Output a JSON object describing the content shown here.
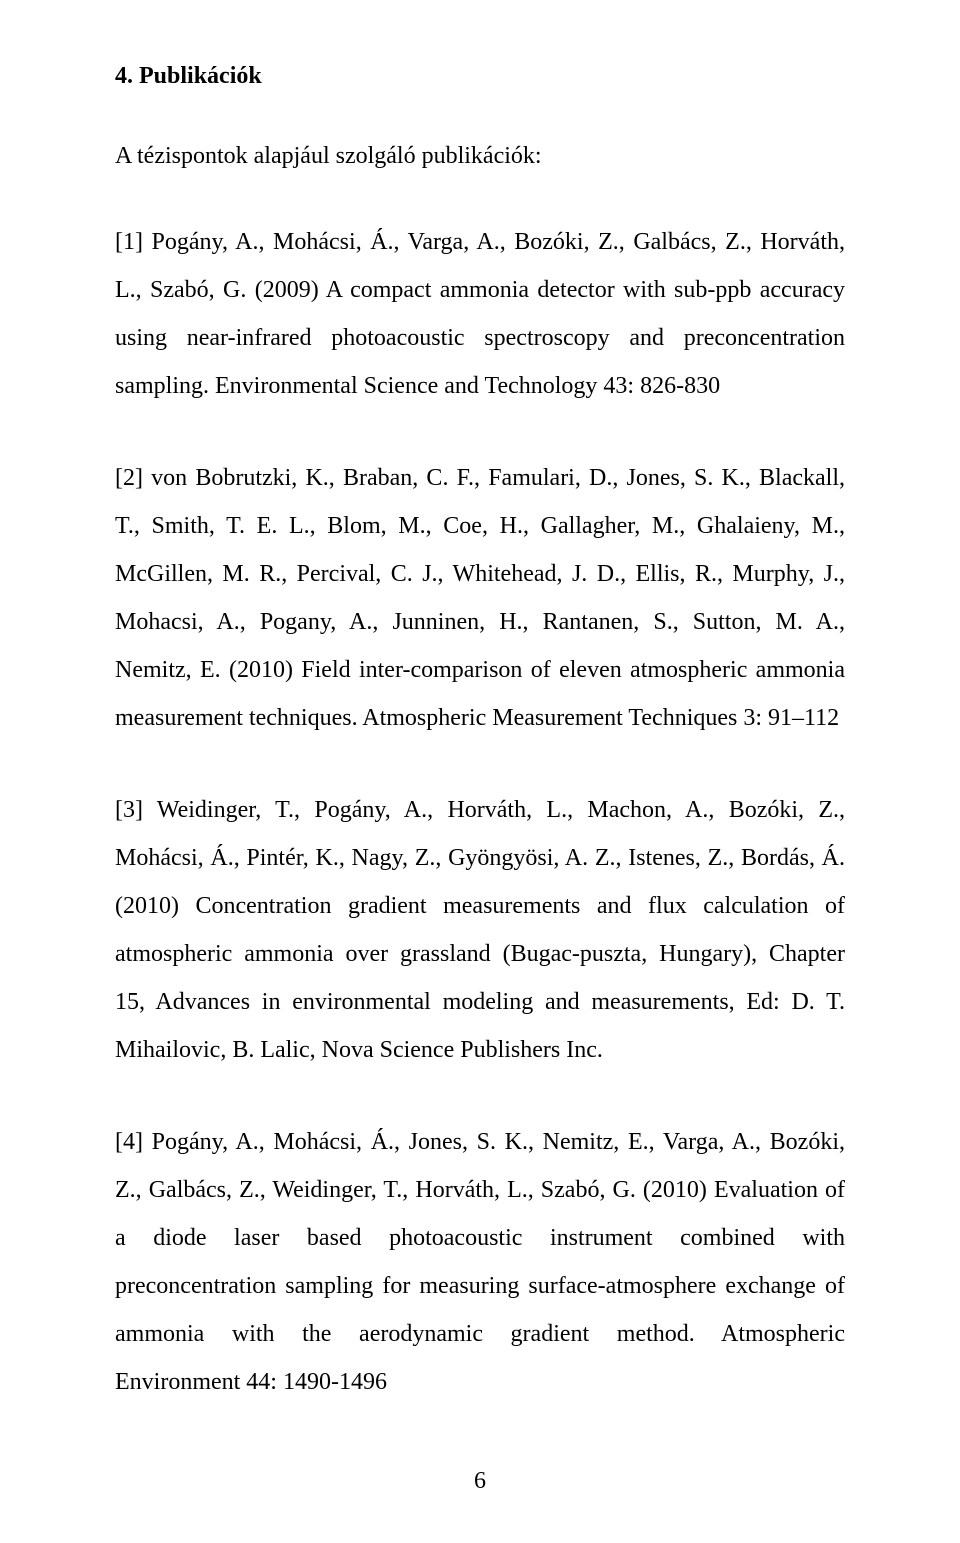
{
  "section_title": "4. Publikációk",
  "subtitle": "A tézispontok alapjául szolgáló publikációk:",
  "references": [
    "[1] Pogány, A., Mohácsi, Á., Varga, A., Bozóki, Z., Galbács, Z., Horváth, L., Szabó, G. (2009) A compact ammonia detector with sub-ppb accuracy using near-infrared photoacoustic spectroscopy and preconcentration sampling. Environmental Science and Technology 43: 826-830",
    "[2] von Bobrutzki, K., Braban, C. F., Famulari, D., Jones, S. K., Blackall, T., Smith, T. E. L., Blom, M., Coe, H., Gallagher, M., Ghalaieny, M., McGillen, M. R., Percival, C. J., Whitehead, J. D., Ellis, R., Murphy, J., Mohacsi, A., Pogany, A., Junninen, H., Rantanen, S., Sutton, M. A., Nemitz, E. (2010) Field inter-comparison of eleven atmospheric ammonia measurement techniques. Atmospheric Measurement Techniques 3: 91–112",
    "[3] Weidinger, T., Pogány, A., Horváth, L., Machon, A., Bozóki, Z., Mohácsi, Á., Pintér, K., Nagy, Z., Gyöngyösi, A. Z., Istenes, Z., Bordás, Á. (2010) Concentration gradient measurements and flux calculation of atmospheric ammonia over grassland (Bugac-puszta, Hungary), Chapter 15, Advances in environmental modeling and measurements, Ed: D. T. Mihailovic, B. Lalic, Nova Science Publishers Inc.",
    "[4] Pogány, A., Mohácsi, Á., Jones, S. K., Nemitz, E., Varga, A., Bozóki, Z., Galbács, Z., Weidinger, T., Horváth, L., Szabó, G. (2010) Evaluation of a diode laser based photoacoustic instrument combined with preconcentration sampling for measuring surface-atmosphere exchange of ammonia with the aerodynamic gradient method. Atmospheric Environment 44: 1490-1496"
  ],
  "page_number": "6"
}
